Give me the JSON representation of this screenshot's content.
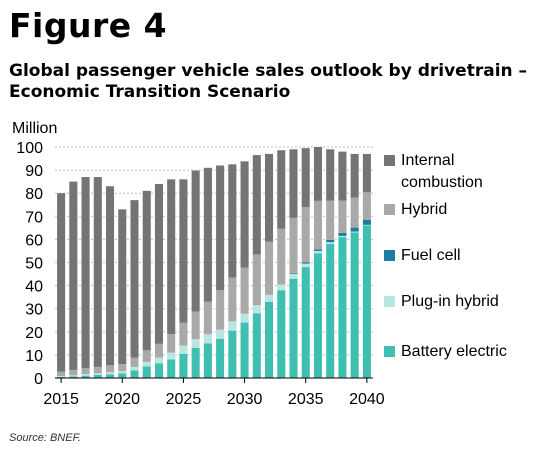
{
  "figure_label": "Figure 4",
  "title": "Global passenger vehicle sales outlook by drivetrain – Economic Transition Scenario",
  "source": "Source: BNEF.",
  "chart_data": {
    "type": "bar",
    "stacked": true,
    "ylabel": "Million",
    "ylim": [
      0,
      100
    ],
    "yticks": [
      0,
      10,
      20,
      30,
      40,
      50,
      60,
      70,
      80,
      90,
      100
    ],
    "xtick_labels": [
      "2015",
      "2020",
      "2025",
      "2030",
      "2035",
      "2040"
    ],
    "grid": "horizontal dashed",
    "legend_position": "right",
    "categories": [
      2015,
      2016,
      2017,
      2018,
      2019,
      2020,
      2021,
      2022,
      2023,
      2024,
      2025,
      2026,
      2027,
      2028,
      2029,
      2030,
      2031,
      2032,
      2033,
      2034,
      2035,
      2036,
      2037,
      2038,
      2039,
      2040
    ],
    "series": [
      {
        "name": "Battery electric",
        "color": "#3fbfb0",
        "values": [
          0.5,
          0.7,
          1,
          1.3,
          1.6,
          2,
          3.3,
          5,
          6.3,
          8,
          10.5,
          13,
          15,
          17,
          20.5,
          24,
          28,
          33,
          38,
          43,
          48,
          54,
          58,
          61,
          63,
          66
        ]
      },
      {
        "name": "Plug-in hybrid",
        "color": "#b8e6e1",
        "values": [
          0.3,
          0.5,
          0.7,
          0.8,
          0.9,
          1,
          1.5,
          2,
          2.5,
          3,
          3.5,
          3.8,
          4,
          4,
          4,
          3.8,
          3.5,
          3,
          2.5,
          2,
          1.5,
          1,
          0.8,
          0.5,
          0.4,
          0.3
        ]
      },
      {
        "name": "Fuel cell",
        "color": "#1b7ea0",
        "values": [
          0,
          0,
          0,
          0,
          0,
          0,
          0,
          0,
          0,
          0,
          0,
          0,
          0,
          0,
          0,
          0,
          0,
          0,
          0.1,
          0.3,
          0.5,
          0.7,
          1,
          1.3,
          1.7,
          2.1
        ]
      },
      {
        "name": "Hybrid",
        "color": "#a9a9a9",
        "values": [
          2,
          2.3,
          2.5,
          2.7,
          3,
          3,
          4,
          5,
          6,
          8,
          10,
          12,
          14,
          17,
          19,
          20,
          22,
          23,
          24,
          24,
          24,
          21,
          17,
          14,
          13,
          12
        ]
      },
      {
        "name": "Internal combustion",
        "color": "#747474",
        "values": [
          77.2,
          81.5,
          82.8,
          82.2,
          77.5,
          67,
          68.2,
          69,
          69.2,
          67,
          62,
          61,
          58,
          54,
          49,
          46,
          43,
          38,
          34,
          29.7,
          25.5,
          23.3,
          22.2,
          21.2,
          18.9,
          16.6
        ]
      }
    ],
    "legend_order": [
      "Internal combustion",
      "Hybrid",
      "Fuel cell",
      "Plug-in hybrid",
      "Battery electric"
    ]
  },
  "legend_labels": {
    "ice": "Internal combustion",
    "hybrid": "Hybrid",
    "fuelcell": "Fuel cell",
    "phev": "Plug-in hybrid",
    "bev": "Battery electric"
  },
  "legend_colors": {
    "ice": "#747474",
    "hybrid": "#a9a9a9",
    "fuelcell": "#1b7ea0",
    "phev": "#b8e6e1",
    "bev": "#3fbfb0"
  }
}
